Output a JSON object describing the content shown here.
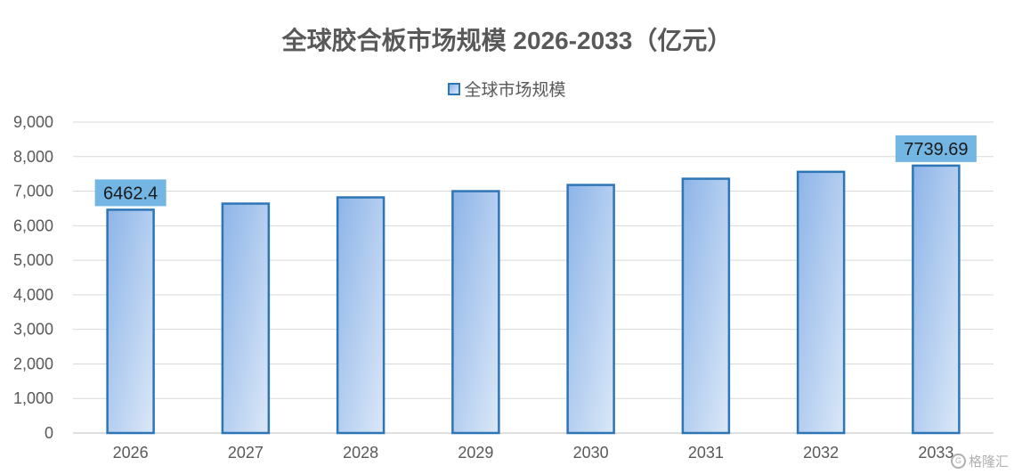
{
  "chart_data": {
    "type": "bar",
    "title": "全球胶合板市场规模 2026-2033（亿元）",
    "categories": [
      "2026",
      "2027",
      "2028",
      "2029",
      "2030",
      "2031",
      "2032",
      "2033"
    ],
    "series": [
      {
        "name": "全球市场规模",
        "values": [
          6462.4,
          6640,
          6820,
          7000,
          7180,
          7360,
          7560,
          7739.69
        ]
      }
    ],
    "data_labels": [
      {
        "index": 0,
        "text": "6462.4"
      },
      {
        "index": 7,
        "text": "7739.69"
      }
    ],
    "ylim": [
      0,
      9000
    ],
    "yticks": [
      0,
      1000,
      2000,
      3000,
      4000,
      5000,
      6000,
      7000,
      8000,
      9000
    ],
    "ytick_labels": [
      "0",
      "1,000",
      "2,000",
      "3,000",
      "4,000",
      "5,000",
      "6,000",
      "7,000",
      "8,000",
      "9,000"
    ],
    "grid": true,
    "legend_position": "top-center",
    "colors": {
      "bar_fill_top": "#8db4e8",
      "bar_fill_bottom": "#dbe8f8",
      "bar_border": "#2e75b6",
      "label_bg": "#73b5e3",
      "grid": "#d9d9d9"
    }
  },
  "watermark": {
    "text": "格隆汇",
    "icon": "g-logo-icon"
  }
}
